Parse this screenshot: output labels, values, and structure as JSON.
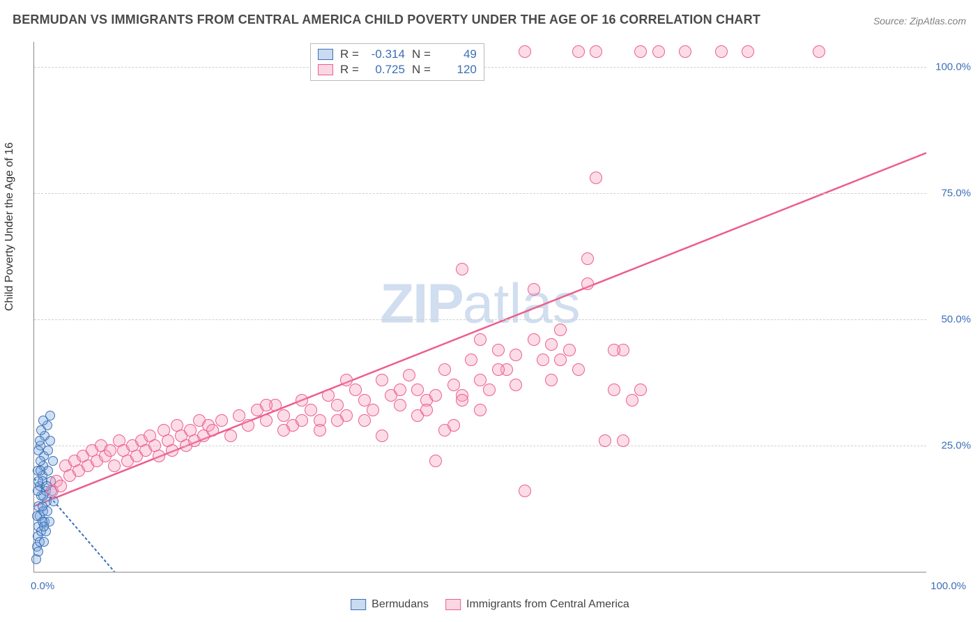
{
  "title": "BERMUDAN VS IMMIGRANTS FROM CENTRAL AMERICA CHILD POVERTY UNDER THE AGE OF 16 CORRELATION CHART",
  "source": "Source: ZipAtlas.com",
  "ylabel": "Child Poverty Under the Age of 16",
  "watermark_bold": "ZIP",
  "watermark_thin": "atlas",
  "chart": {
    "type": "scatter",
    "xlim": [
      0,
      100
    ],
    "ylim": [
      0,
      105
    ],
    "xtick_labels": [
      "0.0%",
      "100.0%"
    ],
    "ytick_positions": [
      25,
      50,
      75,
      100
    ],
    "ytick_labels": [
      "25.0%",
      "50.0%",
      "75.0%",
      "100.0%"
    ],
    "grid_y": [
      25,
      50,
      75,
      100
    ],
    "grid_color": "#d0d0d0",
    "axis_color": "#888888",
    "background": "#ffffff",
    "series": [
      {
        "name": "Bermudans",
        "color_fill": "rgba(120,165,220,0.35)",
        "color_stroke": "#3b6fb6",
        "marker_size": 14,
        "R": "-0.314",
        "N": "49",
        "trend": {
          "x1": 0,
          "y1": 18.5,
          "x2": 9,
          "y2": 0,
          "color": "#3b6fb6",
          "width": 2,
          "dash": "4,3"
        },
        "points": [
          [
            0.2,
            2.5
          ],
          [
            0.3,
            5
          ],
          [
            0.4,
            7
          ],
          [
            0.5,
            9
          ],
          [
            0.6,
            11
          ],
          [
            0.5,
            13
          ],
          [
            0.8,
            15
          ],
          [
            0.6,
            17
          ],
          [
            0.9,
            19
          ],
          [
            1.0,
            21
          ],
          [
            1.1,
            23
          ],
          [
            0.7,
            25
          ],
          [
            1.2,
            27
          ],
          [
            1.5,
            29
          ],
          [
            1.8,
            31
          ],
          [
            0.9,
            18
          ],
          [
            1.3,
            16
          ],
          [
            1.4,
            14
          ],
          [
            1.0,
            12
          ],
          [
            1.2,
            10
          ],
          [
            0.8,
            8
          ],
          [
            0.6,
            6
          ],
          [
            0.5,
            4
          ],
          [
            0.4,
            20
          ],
          [
            0.7,
            22
          ],
          [
            1.6,
            20
          ],
          [
            1.9,
            18
          ],
          [
            2.0,
            16
          ],
          [
            2.2,
            14
          ],
          [
            1.5,
            12
          ],
          [
            1.7,
            10
          ],
          [
            1.3,
            8
          ],
          [
            1.1,
            6
          ],
          [
            0.9,
            13
          ],
          [
            1.0,
            15
          ],
          [
            1.4,
            17
          ],
          [
            1.6,
            24
          ],
          [
            1.8,
            26
          ],
          [
            2.1,
            22
          ],
          [
            0.5,
            24
          ],
          [
            0.6,
            26
          ],
          [
            0.8,
            28
          ],
          [
            1.0,
            30
          ],
          [
            0.3,
            11
          ],
          [
            0.4,
            16
          ],
          [
            0.5,
            18
          ],
          [
            0.7,
            20
          ],
          [
            0.9,
            10
          ],
          [
            1.1,
            9
          ]
        ]
      },
      {
        "name": "Immigrants from Central America",
        "color_fill": "rgba(246,155,185,0.35)",
        "color_stroke": "#ec5e8c",
        "marker_size": 18,
        "R": "0.725",
        "N": "120",
        "trend": {
          "x1": 0,
          "y1": 13,
          "x2": 100,
          "y2": 83,
          "color": "#ec5e8c",
          "width": 2.5,
          "dash": ""
        },
        "points": [
          [
            2,
            16
          ],
          [
            2.5,
            18
          ],
          [
            3,
            17
          ],
          [
            3.5,
            21
          ],
          [
            4,
            19
          ],
          [
            4.5,
            22
          ],
          [
            5,
            20
          ],
          [
            5.5,
            23
          ],
          [
            6,
            21
          ],
          [
            6.5,
            24
          ],
          [
            7,
            22
          ],
          [
            7.5,
            25
          ],
          [
            8,
            23
          ],
          [
            8.5,
            24
          ],
          [
            9,
            21
          ],
          [
            9.5,
            26
          ],
          [
            10,
            24
          ],
          [
            10.5,
            22
          ],
          [
            11,
            25
          ],
          [
            11.5,
            23
          ],
          [
            12,
            26
          ],
          [
            12.5,
            24
          ],
          [
            13,
            27
          ],
          [
            13.5,
            25
          ],
          [
            14,
            23
          ],
          [
            14.5,
            28
          ],
          [
            15,
            26
          ],
          [
            15.5,
            24
          ],
          [
            16,
            29
          ],
          [
            16.5,
            27
          ],
          [
            17,
            25
          ],
          [
            17.5,
            28
          ],
          [
            18,
            26
          ],
          [
            18.5,
            30
          ],
          [
            19,
            27
          ],
          [
            19.5,
            29
          ],
          [
            20,
            28
          ],
          [
            21,
            30
          ],
          [
            22,
            27
          ],
          [
            23,
            31
          ],
          [
            24,
            29
          ],
          [
            25,
            32
          ],
          [
            26,
            30
          ],
          [
            27,
            33
          ],
          [
            28,
            31
          ],
          [
            29,
            29
          ],
          [
            30,
            34
          ],
          [
            31,
            32
          ],
          [
            32,
            30
          ],
          [
            33,
            35
          ],
          [
            34,
            33
          ],
          [
            35,
            31
          ],
          [
            36,
            36
          ],
          [
            37,
            34
          ],
          [
            38,
            32
          ],
          [
            39,
            38
          ],
          [
            40,
            35
          ],
          [
            41,
            33
          ],
          [
            42,
            39
          ],
          [
            43,
            36
          ],
          [
            44,
            34
          ],
          [
            45,
            22
          ],
          [
            46,
            40
          ],
          [
            47,
            37
          ],
          [
            48,
            35
          ],
          [
            49,
            42
          ],
          [
            50,
            38
          ],
          [
            51,
            36
          ],
          [
            52,
            44
          ],
          [
            53,
            40
          ],
          [
            54,
            37
          ],
          [
            55,
            16
          ],
          [
            56,
            46
          ],
          [
            57,
            42
          ],
          [
            58,
            38
          ],
          [
            59,
            48
          ],
          [
            60,
            44
          ],
          [
            61,
            40
          ],
          [
            62,
            57
          ],
          [
            63,
            78
          ],
          [
            64,
            26
          ],
          [
            65,
            36
          ],
          [
            66,
            44
          ],
          [
            67,
            34
          ],
          [
            68,
            36
          ],
          [
            48,
            60
          ],
          [
            55,
            103
          ],
          [
            56,
            56
          ],
          [
            58,
            45
          ],
          [
            59,
            42
          ],
          [
            61,
            103
          ],
          [
            63,
            103
          ],
          [
            65,
            44
          ],
          [
            66,
            26
          ],
          [
            68,
            103
          ],
          [
            70,
            103
          ],
          [
            73,
            103
          ],
          [
            77,
            103
          ],
          [
            80,
            103
          ],
          [
            88,
            103
          ],
          [
            62,
            62
          ],
          [
            50,
            46
          ],
          [
            52,
            40
          ],
          [
            54,
            43
          ],
          [
            35,
            38
          ],
          [
            37,
            30
          ],
          [
            39,
            27
          ],
          [
            41,
            36
          ],
          [
            43,
            31
          ],
          [
            45,
            35
          ],
          [
            47,
            29
          ],
          [
            26,
            33
          ],
          [
            28,
            28
          ],
          [
            30,
            30
          ],
          [
            32,
            28
          ],
          [
            34,
            30
          ],
          [
            44,
            32
          ],
          [
            46,
            28
          ],
          [
            48,
            34
          ],
          [
            50,
            32
          ]
        ]
      }
    ]
  },
  "legend_top_labels": {
    "r": "R =",
    "n": "N ="
  },
  "legend_bottom": [
    {
      "swatch": "blue",
      "label": "Bermudans"
    },
    {
      "swatch": "pink",
      "label": "Immigrants from Central America"
    }
  ]
}
